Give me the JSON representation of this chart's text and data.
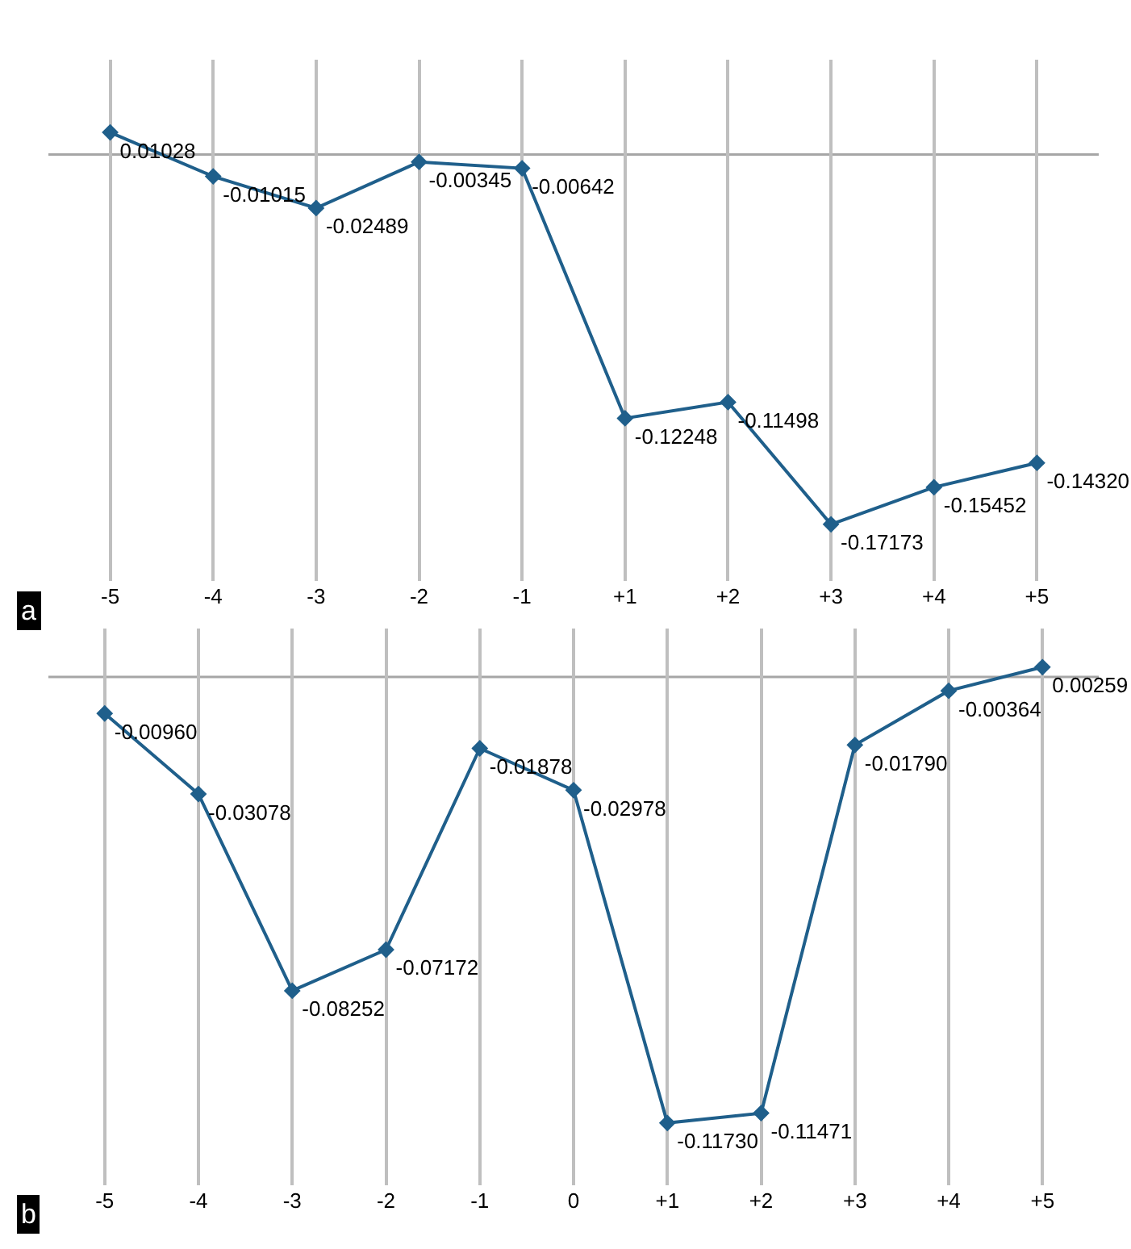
{
  "chart_data": [
    {
      "type": "line",
      "categories": [
        "-5",
        "-4",
        "-3",
        "-2",
        "-1",
        "+1",
        "+2",
        "+3",
        "+4",
        "+5"
      ],
      "series": [
        {
          "color": "#1f5f8b",
          "values": [
            0.01028,
            -0.01015,
            -0.02489,
            -0.00345,
            -0.00642,
            -0.12248,
            -0.11498,
            -0.17173,
            -0.15452,
            -0.1432
          ],
          "value_labels": [
            "0.01028",
            "-0.01015",
            "-0.02489",
            "-0.00345",
            "-0.00642",
            "-0.12248",
            "-0.11498",
            "-0.17173",
            "-0.15452",
            "-0.14320"
          ]
        }
      ],
      "marker": "diamond",
      "line_style": "solid",
      "grid": "x",
      "tick_labels": "x",
      "ylim": [
        -0.198,
        0.044
      ],
      "ref_lines": [
        {
          "axis": "y",
          "value": 0,
          "color": "#a6a6a6"
        }
      ],
      "annotations": [
        "a"
      ]
    },
    {
      "type": "line",
      "categories": [
        "-5",
        "-4",
        "-3",
        "-2",
        "-1",
        "0",
        "+1",
        "+2",
        "+3",
        "+4",
        "+5"
      ],
      "series": [
        {
          "color": "#1f5f8b",
          "values": [
            -0.0096,
            -0.03078,
            -0.08252,
            -0.07172,
            -0.01878,
            -0.02978,
            -0.1173,
            -0.11471,
            -0.0179,
            -0.00364,
            0.00259
          ],
          "value_labels": [
            "-0.00960",
            "-0.03078",
            "-0.08252",
            "-0.07172",
            "-0.01878",
            "-0.02978",
            "-0.11730",
            "-0.11471",
            "-0.01790",
            "-0.00364",
            "0.00259"
          ]
        }
      ],
      "marker": "diamond",
      "line_style": "solid",
      "grid": "x",
      "tick_labels": "x",
      "ylim": [
        -0.1336,
        0.0128
      ],
      "ref_lines": [
        {
          "axis": "y",
          "value": 0,
          "color": "#a6a6a6"
        }
      ],
      "annotations": [
        "b"
      ]
    }
  ]
}
